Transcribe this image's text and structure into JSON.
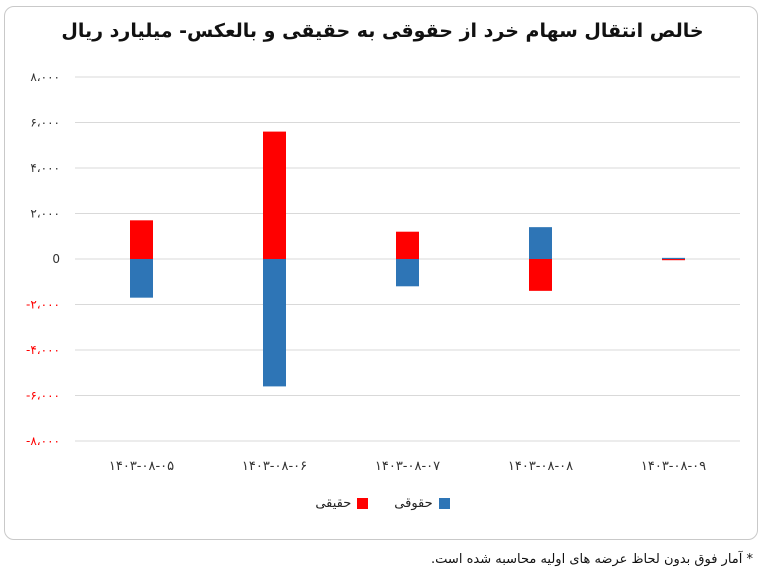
{
  "chart_data": {
    "type": "bar",
    "stacked": true,
    "title": "خالص انتقال سهام خرد از حقوقی به حقیقی و بالعکس- میلیارد ریال",
    "categories": [
      "۱۴۰۳-۰۸-۰۵",
      "۱۴۰۳-۰۸-۰۶",
      "۱۴۰۳-۰۸-۰۷",
      "۱۴۰۳-۰۸-۰۸",
      "۱۴۰۳-۰۸-۰۹"
    ],
    "series": [
      {
        "name": "حقیقی",
        "color": "#ff0000",
        "values": [
          1700,
          5600,
          1200,
          -1400,
          -50
        ]
      },
      {
        "name": "حقوقی",
        "color": "#2e75b6",
        "values": [
          -1700,
          -5600,
          -1200,
          1400,
          50
        ]
      }
    ],
    "ylim": [
      -8000,
      8000
    ],
    "yticks": [
      {
        "value": 8000,
        "label": "۸،۰۰۰"
      },
      {
        "value": 6000,
        "label": "۶،۰۰۰"
      },
      {
        "value": 4000,
        "label": "۴،۰۰۰"
      },
      {
        "value": 2000,
        "label": "۲،۰۰۰"
      },
      {
        "value": 0,
        "label": "0"
      },
      {
        "value": -2000,
        "label": "-۲،۰۰۰"
      },
      {
        "value": -4000,
        "label": "-۴،۰۰۰"
      },
      {
        "value": -6000,
        "label": "-۶،۰۰۰"
      },
      {
        "value": -8000,
        "label": "-۸،۰۰۰"
      }
    ],
    "negative_label_color": "#ff0000",
    "grid": true,
    "legend_position": "bottom"
  },
  "footnote": "* آمار فوق بدون لحاظ عرضه های اولیه محاسبه شده است."
}
